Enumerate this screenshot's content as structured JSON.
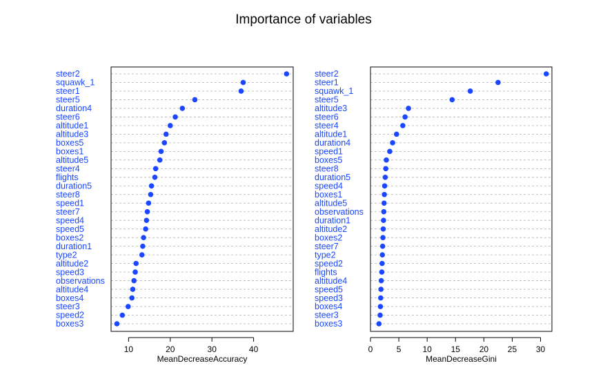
{
  "title": "Importance of variables",
  "colors": {
    "point": "#1a47ff",
    "label": "#1a47ff",
    "gridline": "#b0b0b0",
    "frame": "#000000"
  },
  "chart_data": [
    {
      "type": "scatter",
      "style": "dotchart",
      "xlabel": "MeanDecreaseAccuracy",
      "xlim": [
        5.8,
        49.5
      ],
      "xticks": [
        10,
        20,
        30,
        40
      ],
      "grid": "dashed-horizontal",
      "categories": [
        "steer2",
        "squawk_1",
        "steer1",
        "steer5",
        "duration4",
        "steer6",
        "altitude1",
        "altitude3",
        "boxes5",
        "boxes1",
        "altitude5",
        "steer4",
        "flights",
        "duration5",
        "steer8",
        "speed1",
        "steer7",
        "speed4",
        "speed5",
        "boxes2",
        "duration1",
        "type2",
        "altitude2",
        "speed3",
        "observations",
        "altitude4",
        "boxes4",
        "steer3",
        "speed2",
        "boxes3"
      ],
      "values": [
        47.9,
        37.5,
        37.0,
        25.9,
        22.9,
        21.2,
        20.0,
        19.0,
        18.6,
        17.8,
        17.5,
        16.5,
        16.3,
        15.5,
        15.3,
        14.8,
        14.5,
        14.3,
        14.1,
        13.6,
        13.4,
        13.2,
        11.8,
        11.6,
        11.3,
        11.0,
        10.8,
        9.9,
        8.5,
        7.2
      ]
    },
    {
      "type": "scatter",
      "style": "dotchart",
      "xlabel": "MeanDecreaseGini",
      "xlim": [
        0,
        32
      ],
      "xticks": [
        0,
        5,
        10,
        15,
        20,
        25,
        30
      ],
      "grid": "dashed-horizontal",
      "categories": [
        "steer2",
        "steer1",
        "squawk_1",
        "steer5",
        "altitude3",
        "steer6",
        "steer4",
        "altitude1",
        "duration4",
        "speed1",
        "boxes5",
        "steer8",
        "duration5",
        "speed4",
        "boxes1",
        "altitude5",
        "observations",
        "duration1",
        "altitude2",
        "boxes2",
        "steer7",
        "type2",
        "speed2",
        "flights",
        "altitude4",
        "speed5",
        "speed3",
        "boxes4",
        "steer3",
        "boxes3"
      ],
      "values": [
        31.0,
        22.5,
        17.6,
        14.4,
        6.7,
        6.1,
        5.7,
        4.6,
        3.9,
        3.4,
        2.8,
        2.7,
        2.6,
        2.5,
        2.45,
        2.4,
        2.35,
        2.3,
        2.25,
        2.2,
        2.15,
        2.1,
        2.05,
        2.0,
        1.9,
        1.85,
        1.8,
        1.75,
        1.7,
        1.5
      ]
    }
  ]
}
